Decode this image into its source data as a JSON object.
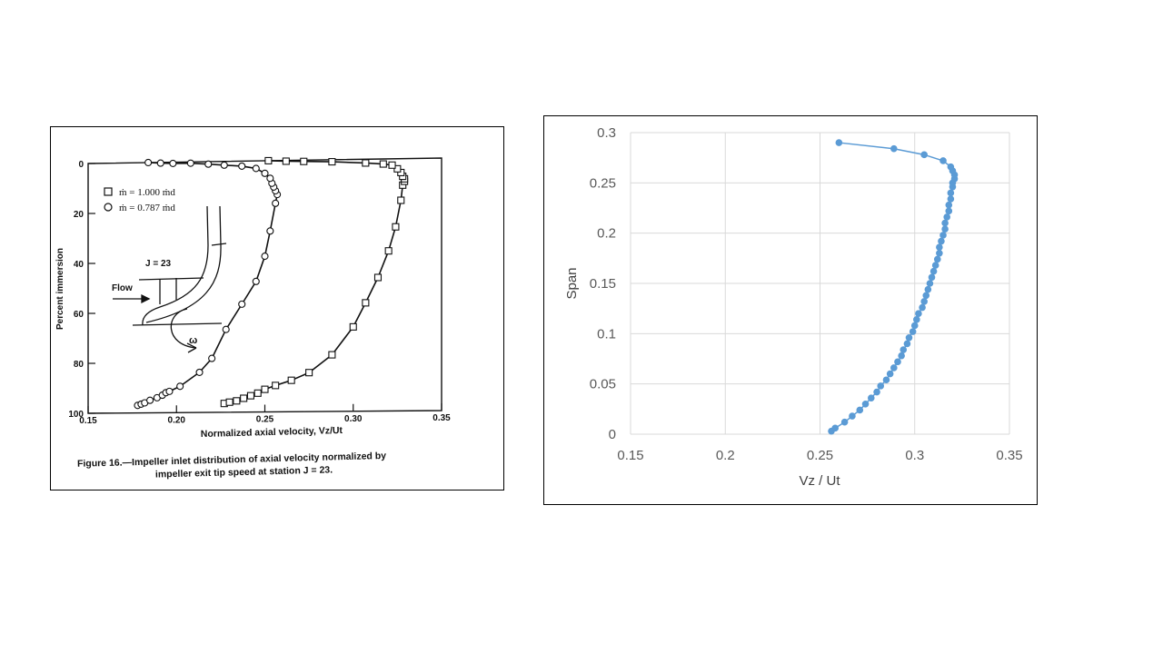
{
  "chart_data": [
    {
      "type": "scatter",
      "xlabel": "Normalized axial velocity, Vz/Ut",
      "ylabel": "Percent immersion",
      "xlim": [
        0.15,
        0.35
      ],
      "ylim": [
        0,
        100
      ],
      "y_inverted": true,
      "x_ticks": [
        "0.15",
        "0.20",
        "0.25",
        "0.30",
        "0.35"
      ],
      "y_ticks": [
        "0",
        "20",
        "40",
        "60",
        "80",
        "100"
      ],
      "caption_line1": "Figure 16.—Impeller inlet distribution of axial velocity normalized by",
      "caption_line2": "impeller exit tip speed at station J = 23.",
      "legend_position": "top-left",
      "inset": {
        "station_label": "J = 23",
        "flow_label": "Flow",
        "omega_label": "ω"
      },
      "series": [
        {
          "name": "ṁ = 1.000 ṁd",
          "marker": "square",
          "x": [
            0.227,
            0.23,
            0.234,
            0.238,
            0.242,
            0.246,
            0.25,
            0.256,
            0.265,
            0.275,
            0.288,
            0.3,
            0.307,
            0.314,
            0.32,
            0.324,
            0.327,
            0.328,
            0.329,
            0.329,
            0.328,
            0.327,
            0.325,
            0.322,
            0.317,
            0.307,
            0.288,
            0.272,
            0.262,
            0.252
          ],
          "y": [
            96.5,
            96.0,
            95.5,
            94.5,
            93.5,
            92.5,
            91.0,
            89.5,
            87.5,
            84.5,
            77.5,
            66.5,
            57.0,
            47.0,
            36.5,
            27.0,
            16.5,
            10.5,
            9.0,
            8.0,
            7.0,
            5.5,
            4.0,
            2.5,
            2.0,
            1.5,
            0.8,
            0.5,
            0.3,
            0.0
          ]
        },
        {
          "name": "ṁ = 0.787 ṁd",
          "marker": "circle",
          "x": [
            0.178,
            0.18,
            0.182,
            0.185,
            0.189,
            0.192,
            0.194,
            0.196,
            0.202,
            0.213,
            0.22,
            0.228,
            0.237,
            0.245,
            0.25,
            0.253,
            0.256,
            0.257,
            0.256,
            0.255,
            0.254,
            0.253,
            0.25,
            0.245,
            0.237,
            0.227,
            0.218,
            0.208,
            0.198,
            0.191,
            0.184
          ],
          "y": [
            97.0,
            96.5,
            96.0,
            95.0,
            94.0,
            93.0,
            92.0,
            91.5,
            89.5,
            84.0,
            78.5,
            67.0,
            57.0,
            48.0,
            38.0,
            28.0,
            17.0,
            13.5,
            12.0,
            10.5,
            9.0,
            7.0,
            5.0,
            3.0,
            2.0,
            1.5,
            1.0,
            0.5,
            0.5,
            0.3,
            0.0
          ]
        }
      ]
    },
    {
      "type": "line",
      "xlabel": "Vz / Ut",
      "ylabel": "Span",
      "xlim": [
        0.15,
        0.35
      ],
      "ylim": [
        0,
        0.3
      ],
      "x_ticks": [
        "0.15",
        "0.2",
        "0.25",
        "0.3",
        "0.35"
      ],
      "y_ticks": [
        "0",
        "0.05",
        "0.1",
        "0.15",
        "0.2",
        "0.25",
        "0.3"
      ],
      "grid": true,
      "series": [
        {
          "color": "#5b9bd5",
          "x": [
            0.256,
            0.258,
            0.263,
            0.267,
            0.271,
            0.274,
            0.277,
            0.28,
            0.282,
            0.285,
            0.287,
            0.289,
            0.291,
            0.293,
            0.294,
            0.296,
            0.297,
            0.299,
            0.3,
            0.301,
            0.302,
            0.304,
            0.305,
            0.306,
            0.307,
            0.308,
            0.309,
            0.31,
            0.311,
            0.312,
            0.313,
            0.313,
            0.314,
            0.315,
            0.316,
            0.316,
            0.317,
            0.318,
            0.318,
            0.319,
            0.319,
            0.32,
            0.32,
            0.321,
            0.321,
            0.32,
            0.319,
            0.315,
            0.305,
            0.289,
            0.26
          ],
          "y": [
            0.003,
            0.006,
            0.012,
            0.018,
            0.024,
            0.03,
            0.036,
            0.042,
            0.048,
            0.054,
            0.06,
            0.066,
            0.072,
            0.078,
            0.084,
            0.09,
            0.096,
            0.102,
            0.108,
            0.114,
            0.12,
            0.126,
            0.132,
            0.138,
            0.144,
            0.15,
            0.156,
            0.162,
            0.168,
            0.174,
            0.18,
            0.186,
            0.192,
            0.198,
            0.204,
            0.21,
            0.216,
            0.222,
            0.228,
            0.234,
            0.24,
            0.246,
            0.25,
            0.254,
            0.258,
            0.262,
            0.266,
            0.272,
            0.278,
            0.284,
            0.29
          ]
        }
      ]
    }
  ]
}
